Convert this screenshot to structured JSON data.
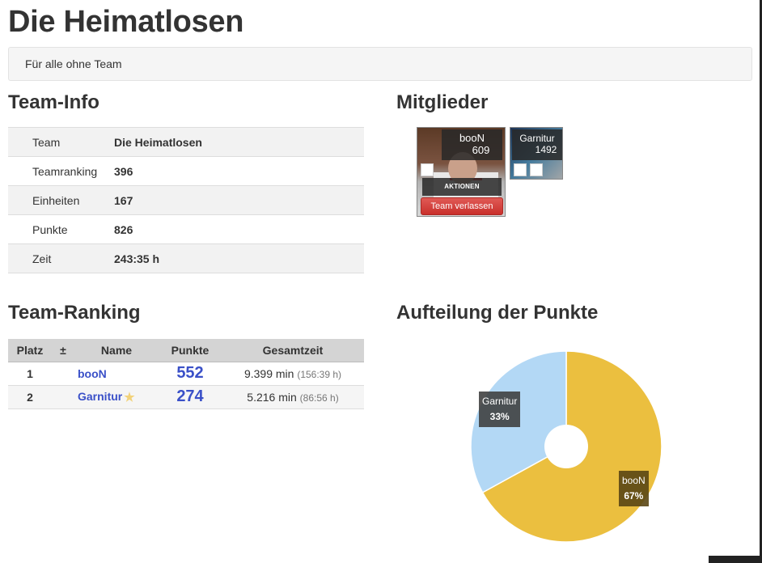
{
  "page": {
    "title": "Die Heimatlosen",
    "subtitle": "Für alle ohne Team"
  },
  "sections": {
    "team_info": "Team-Info",
    "members": "Mitglieder",
    "team_ranking": "Team-Ranking",
    "points_split": "Aufteilung der Punkte"
  },
  "team_info": [
    {
      "label": "Team",
      "value": "Die Heimatlosen"
    },
    {
      "label": "Teamranking",
      "value": "396"
    },
    {
      "label": "Einheiten",
      "value": "167"
    },
    {
      "label": "Punkte",
      "value": "826"
    },
    {
      "label": "Zeit",
      "value": "243:35 h"
    }
  ],
  "members": [
    {
      "name": "booN",
      "points": "609",
      "actions_label": "AKTIONEN",
      "leave_label": "Team verlassen"
    },
    {
      "name": "Garnitur",
      "points": "1492"
    }
  ],
  "ranking": {
    "headers": [
      "Platz",
      "±",
      "Name",
      "Punkte",
      "Gesamtzeit"
    ],
    "rows": [
      {
        "place": "1",
        "change": "",
        "name": "booN",
        "points": "552",
        "time": "9.399 min",
        "time_h": "(156:39 h)"
      },
      {
        "place": "2",
        "change": "",
        "name": "Garnitur",
        "points": "274",
        "time": "5.216 min",
        "time_h": "(86:56 h)"
      }
    ]
  },
  "chart_data": {
    "type": "pie",
    "title": "",
    "categories": [
      "booN",
      "Garnitur"
    ],
    "values": [
      67,
      33
    ],
    "labels": [
      "67%",
      "33%"
    ],
    "colors": [
      "#ebbf3f",
      "#b3d8f5"
    ],
    "donut": true
  }
}
